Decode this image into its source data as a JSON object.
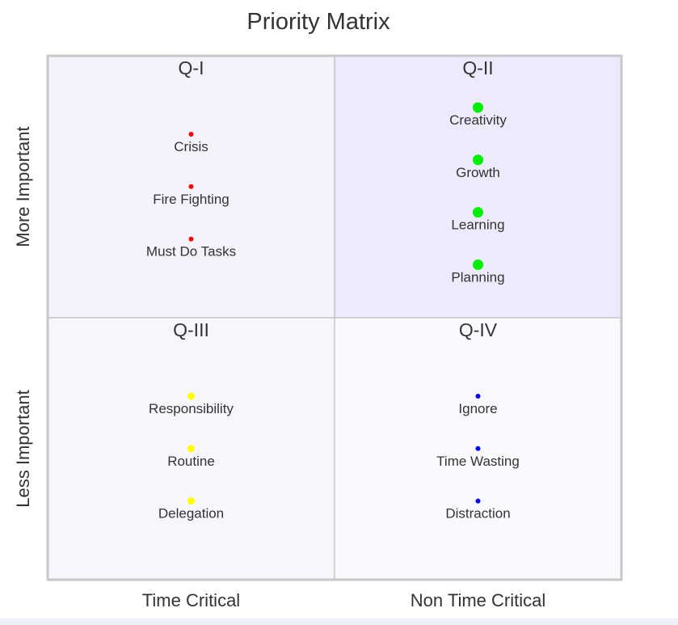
{
  "chart_data": {
    "type": "scatter",
    "title": "Priority Matrix",
    "x_categories": [
      "Time Critical",
      "Non Time Critical"
    ],
    "y_categories": [
      "More Important",
      "Less Important"
    ],
    "grid": true,
    "quadrants": [
      {
        "id": "q1",
        "label": "Q-I",
        "column": 0,
        "row": 0,
        "fill": "#f3f3fd",
        "marker_color": "#ff0000",
        "marker_size": "small",
        "items": [
          "Crisis",
          "Fire Fighting",
          "Must Do Tasks"
        ]
      },
      {
        "id": "q2",
        "label": "Q-II",
        "column": 1,
        "row": 0,
        "fill": "#ebebfb",
        "marker_color": "#00ee00",
        "marker_size": "large",
        "items": [
          "Creativity",
          "Growth",
          "Learning",
          "Planning"
        ]
      },
      {
        "id": "q3",
        "label": "Q-III",
        "column": 0,
        "row": 1,
        "fill": "#f6f6fc",
        "marker_color": "#ffff00",
        "marker_size": "medium",
        "items": [
          "Responsibility",
          "Routine",
          "Delegation"
        ]
      },
      {
        "id": "q4",
        "label": "Q-IV",
        "column": 1,
        "row": 1,
        "fill": "#fafafe",
        "marker_color": "#0000ff",
        "marker_size": "small",
        "items": [
          "Ignore",
          "Time Wasting",
          "Distraction"
        ]
      }
    ],
    "colors": {
      "grid": "#c4c4c4",
      "border": "#c8c8c8",
      "text": "#333333"
    }
  }
}
